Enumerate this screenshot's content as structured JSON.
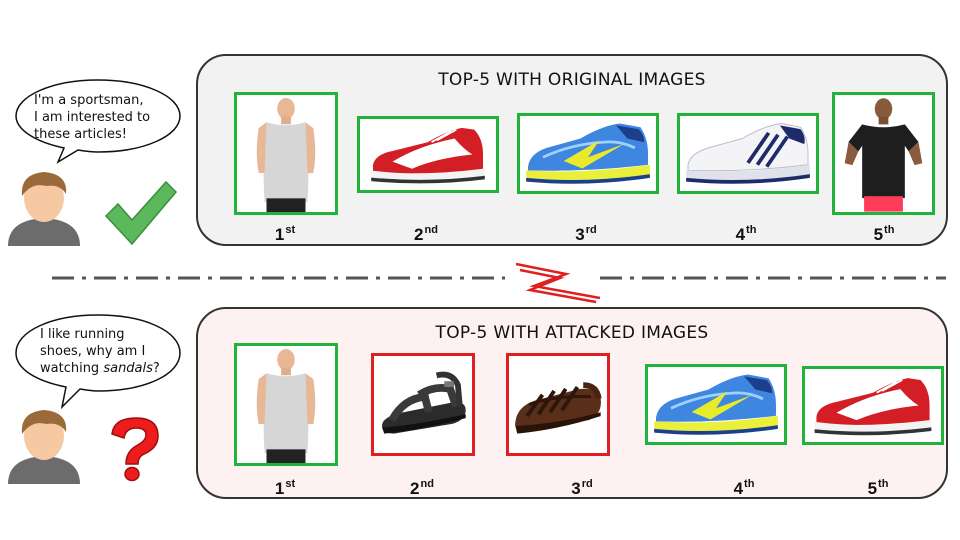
{
  "top": {
    "speech": [
      "I'm a sportsman,",
      "I am interested to",
      "these articles!"
    ],
    "title": "TOP-5 WITH ORIGINAL IMAGES",
    "ranks": [
      {
        "num": "1",
        "suf": "st"
      },
      {
        "num": "2",
        "suf": "nd"
      },
      {
        "num": "3",
        "suf": "rd"
      },
      {
        "num": "4",
        "suf": "th"
      },
      {
        "num": "5",
        "suf": "th"
      }
    ],
    "items": [
      {
        "kind": "sleeveless-shirt",
        "border": "green"
      },
      {
        "kind": "red-sneaker",
        "border": "green"
      },
      {
        "kind": "blue-running-shoe",
        "border": "green"
      },
      {
        "kind": "white-running-shoe",
        "border": "green"
      },
      {
        "kind": "black-tshirt",
        "border": "green"
      }
    ]
  },
  "bottom": {
    "speech": [
      "I like running",
      "shoes, why am I",
      "watching ",
      "sandals",
      "?"
    ],
    "title": "TOP-5 WITH ATTACKED IMAGES",
    "ranks": [
      {
        "num": "1",
        "suf": "st"
      },
      {
        "num": "2",
        "suf": "nd"
      },
      {
        "num": "3",
        "suf": "rd"
      },
      {
        "num": "4",
        "suf": "th"
      },
      {
        "num": "5",
        "suf": "th"
      }
    ],
    "items": [
      {
        "kind": "sleeveless-shirt",
        "border": "green"
      },
      {
        "kind": "black-sandal",
        "border": "red"
      },
      {
        "kind": "brown-sandal",
        "border": "red"
      },
      {
        "kind": "blue-running-shoe",
        "border": "green"
      },
      {
        "kind": "red-sneaker",
        "border": "green"
      }
    ]
  },
  "colors": {
    "green": "#22b33a",
    "red": "#e02020",
    "top_panel_bg": "#f2f2f2",
    "bottom_panel_bg": "#fdf1f1",
    "check": "#5cb85c",
    "question": "#ee1c1c"
  },
  "icons": [
    "user-avatar-icon",
    "checkmark-icon",
    "question-mark-icon",
    "lightning-bolt-icon"
  ]
}
